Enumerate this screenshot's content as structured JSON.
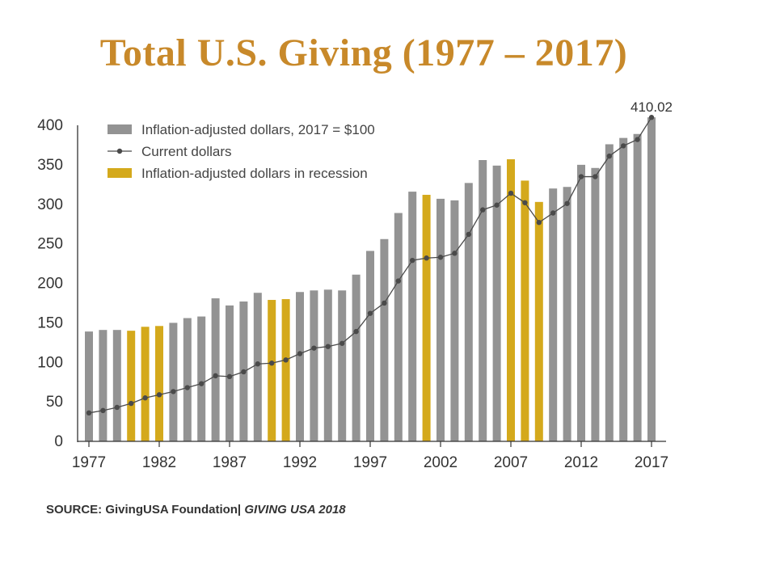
{
  "title": "Total U.S. Giving (1977 – 2017)",
  "source": {
    "label": "SOURCE: GivingUSA Foundation|",
    "publication": "GIVING USA 2018"
  },
  "chart_data": {
    "type": "bar",
    "colors": {
      "bar": "#939393",
      "recession": "#d4a91c",
      "line": "#4a4a4a",
      "axis": "#333333"
    },
    "ylim": [
      0,
      400
    ],
    "yticks": [
      0,
      50,
      100,
      150,
      200,
      250,
      300,
      350,
      400
    ],
    "xtick_labels": [
      "1977",
      "1982",
      "1987",
      "1992",
      "1997",
      "2002",
      "2007",
      "2012",
      "2017"
    ],
    "legend": [
      {
        "label": "Inflation-adjusted dollars, 2017 = $100",
        "kind": "bar",
        "color": "#939393"
      },
      {
        "label": "Current dollars",
        "kind": "line",
        "color": "#4a4a4a"
      },
      {
        "label": "Inflation-adjusted dollars in recession",
        "kind": "bar",
        "color": "#d4a91c"
      }
    ],
    "legend_position": "top-left",
    "annotation": {
      "text": "410.02",
      "year": 2017
    },
    "years": [
      1977,
      1978,
      1979,
      1980,
      1981,
      1982,
      1983,
      1984,
      1985,
      1986,
      1987,
      1988,
      1989,
      1990,
      1991,
      1992,
      1993,
      1994,
      1995,
      1996,
      1997,
      1998,
      1999,
      2000,
      2001,
      2002,
      2003,
      2004,
      2005,
      2006,
      2007,
      2008,
      2009,
      2010,
      2011,
      2012,
      2013,
      2014,
      2015,
      2016,
      2017
    ],
    "series": [
      {
        "name": "Inflation-adjusted dollars, 2017 = $100",
        "kind": "bar",
        "values": [
          139,
          141,
          141,
          140,
          145,
          146,
          150,
          156,
          158,
          181,
          172,
          177,
          188,
          179,
          180,
          189,
          191,
          192,
          191,
          211,
          241,
          256,
          289,
          316,
          312,
          307,
          305,
          327,
          356,
          349,
          357,
          330,
          303,
          320,
          322,
          350,
          346,
          376,
          384,
          389,
          410.02
        ]
      },
      {
        "name": "Current dollars",
        "kind": "line",
        "values": [
          36,
          39,
          43,
          48,
          55,
          59,
          63,
          68,
          73,
          83,
          82,
          88,
          98,
          99,
          103,
          111,
          118,
          120,
          124,
          139,
          162,
          175,
          203,
          229,
          232,
          233,
          238,
          262,
          293,
          299,
          314,
          302,
          277,
          289,
          301,
          335,
          335,
          361,
          374,
          382,
          410.02
        ]
      }
    ],
    "recession_years": [
      1980,
      1981,
      1982,
      1990,
      1991,
      2001,
      2007,
      2008,
      2009
    ]
  }
}
